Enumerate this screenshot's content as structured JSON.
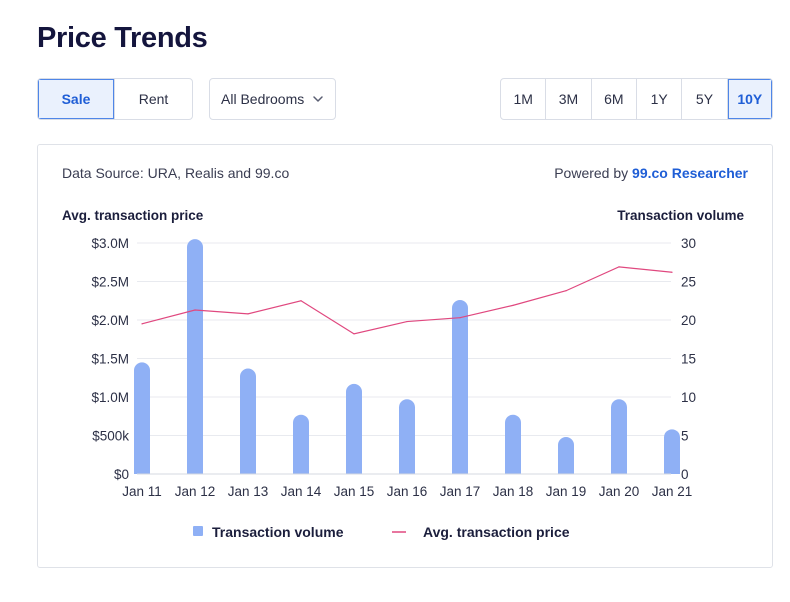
{
  "header": {
    "title": "Price Trends"
  },
  "listing_type": {
    "options": [
      "Sale",
      "Rent"
    ],
    "selected": "Sale"
  },
  "bedrooms": {
    "value": "All Bedrooms"
  },
  "ranges": {
    "options": [
      "1M",
      "3M",
      "6M",
      "1Y",
      "5Y",
      "10Y"
    ],
    "selected": "10Y"
  },
  "card": {
    "source_text": "Data Source: URA, Realis and 99.co",
    "powered_prefix": "Powered by",
    "powered_link": "99.co Researcher"
  },
  "colors": {
    "bars": "#8fb0f5",
    "line": "#e0487f",
    "accent": "#1f5ed6"
  },
  "chart_data": {
    "type": "bar",
    "categories": [
      "Jan 11",
      "Jan 12",
      "Jan 13",
      "Jan 14",
      "Jan 15",
      "Jan 16",
      "Jan 17",
      "Jan 18",
      "Jan 19",
      "Jan 20",
      "Jan 21"
    ],
    "left_axis_title": "Avg. transaction price",
    "right_axis_title": "Transaction volume",
    "left_ticks": [
      "$0",
      "$500k",
      "$1.0M",
      "$1.5M",
      "$2.0M",
      "$2.5M",
      "$3.0M"
    ],
    "right_ticks": [
      "0",
      "5",
      "10",
      "15",
      "20",
      "25",
      "30"
    ],
    "left_ylim": [
      0,
      3000000
    ],
    "right_ylim": [
      0,
      30
    ],
    "series": [
      {
        "name": "Transaction volume",
        "type": "bar",
        "axis": "right",
        "values": [
          14.5,
          30.5,
          13.7,
          7.7,
          11.7,
          9.7,
          22.6,
          7.7,
          4.8,
          9.7,
          5.8
        ]
      },
      {
        "name": "Avg. transaction price",
        "type": "line",
        "axis": "left",
        "values": [
          1950000,
          2130000,
          2080000,
          2250000,
          1820000,
          1980000,
          2030000,
          2190000,
          2380000,
          2690000,
          2620000
        ]
      }
    ],
    "grid": true,
    "legend_position": "bottom"
  }
}
